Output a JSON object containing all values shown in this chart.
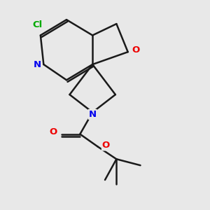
{
  "background_color": "#e8e8e8",
  "bond_color": "#1a1a1a",
  "bond_width": 1.8,
  "atom_colors": {
    "N": "#0000ee",
    "O": "#ee0000",
    "Cl": "#00aa00",
    "C": "#1a1a1a"
  },
  "figsize": [
    3.0,
    3.0
  ],
  "dpi": 100
}
